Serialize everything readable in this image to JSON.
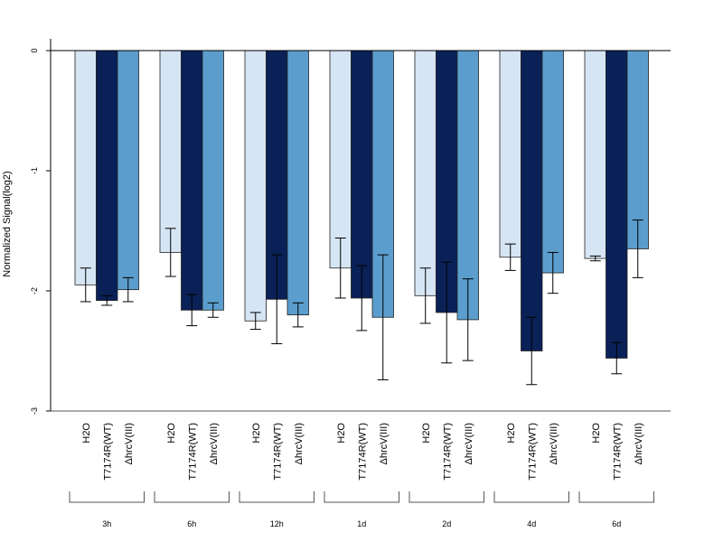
{
  "chart_data": {
    "type": "bar",
    "ylabel": "Normalized Signal(log2)",
    "ylim": [
      -3,
      0.1
    ],
    "yticks": [
      0,
      -1,
      -2,
      -3
    ],
    "baseline": 0,
    "categories": [
      "3h",
      "6h",
      "12h",
      "1d",
      "2d",
      "4d",
      "6d"
    ],
    "series": [
      {
        "name": "H2O",
        "color": "#d6e5f4",
        "values": [
          -1.95,
          -1.68,
          -2.25,
          -1.81,
          -2.04,
          -1.72,
          -1.73
        ],
        "errors": [
          0.14,
          0.2,
          0.07,
          0.25,
          0.23,
          0.11,
          0.02
        ]
      },
      {
        "name": "T7174R(WT)",
        "color": "#0a2157",
        "values": [
          -2.08,
          -2.16,
          -2.07,
          -2.06,
          -2.18,
          -2.5,
          -2.56
        ],
        "errors": [
          0.04,
          0.13,
          0.37,
          0.27,
          0.42,
          0.28,
          0.13
        ]
      },
      {
        "name": "ΔhrcV(III)",
        "color": "#5b9ecd",
        "values": [
          -1.99,
          -2.16,
          -2.2,
          -2.22,
          -2.24,
          -1.85,
          -1.65
        ],
        "errors": [
          0.1,
          0.06,
          0.1,
          0.52,
          0.34,
          0.17,
          0.24
        ]
      }
    ]
  }
}
